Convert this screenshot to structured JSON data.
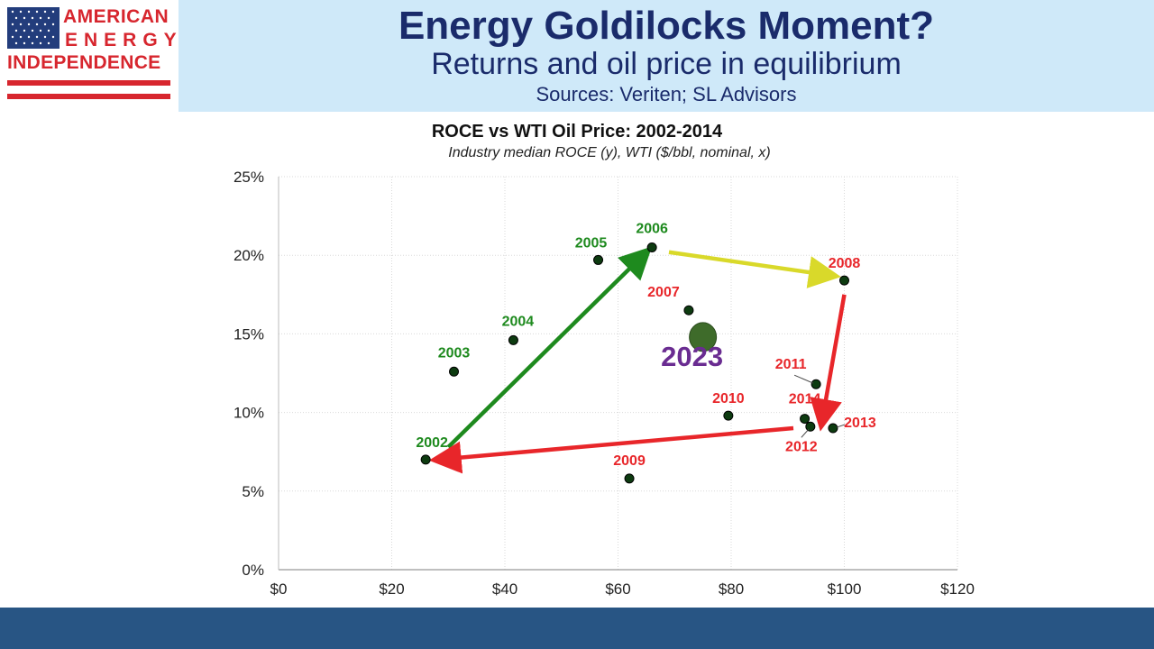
{
  "header": {
    "logo": {
      "line1": "AMERICAN",
      "line2": "ENERGY",
      "line3": "INDEPENDENCE"
    },
    "title": "Energy Goldilocks Moment?",
    "subtitle": "Returns and oil price in equilibrium",
    "sources": "Sources: Veriten; SL Advisors"
  },
  "colors": {
    "header_bg": "#cfe9f9",
    "title_text": "#1a2b6b",
    "footer_bg": "#285584",
    "green": "#1e8a1e",
    "red": "#e8262a",
    "yellow": "#d9d92a",
    "purple": "#6a2c91"
  },
  "chart_data": {
    "type": "scatter",
    "title": "ROCE vs WTI Oil Price: 2002-2014",
    "subtitle": "Industry median ROCE (y), WTI ($/bbl, nominal, x)",
    "xlim": [
      0,
      120
    ],
    "ylim": [
      0,
      25
    ],
    "xticks": [
      "$0",
      "$20",
      "$40",
      "$60",
      "$80",
      "$100",
      "$120"
    ],
    "yticks": [
      "0%",
      "5%",
      "10%",
      "15%",
      "20%",
      "25%"
    ],
    "grid": true,
    "points": [
      {
        "label": "2002",
        "x": 26,
        "y": 7.0,
        "color": "#1e8a1e"
      },
      {
        "label": "2003",
        "x": 31,
        "y": 12.6,
        "color": "#1e8a1e"
      },
      {
        "label": "2004",
        "x": 41.5,
        "y": 14.6,
        "color": "#1e8a1e"
      },
      {
        "label": "2005",
        "x": 56.5,
        "y": 19.7,
        "color": "#1e8a1e"
      },
      {
        "label": "2006",
        "x": 66,
        "y": 20.5,
        "color": "#1e8a1e"
      },
      {
        "label": "2007",
        "x": 72.5,
        "y": 16.5,
        "color": "#e8262a"
      },
      {
        "label": "2008",
        "x": 100,
        "y": 18.4,
        "color": "#e8262a"
      },
      {
        "label": "2009",
        "x": 62,
        "y": 5.8,
        "color": "#e8262a"
      },
      {
        "label": "2010",
        "x": 79.5,
        "y": 9.8,
        "color": "#e8262a"
      },
      {
        "label": "2011",
        "x": 95,
        "y": 11.8,
        "color": "#e8262a"
      },
      {
        "label": "2012",
        "x": 94,
        "y": 9.1,
        "color": "#e8262a"
      },
      {
        "label": "2013",
        "x": 98,
        "y": 9.0,
        "color": "#e8262a"
      },
      {
        "label": "2014",
        "x": 93,
        "y": 9.6,
        "color": "#e8262a"
      }
    ],
    "highlight": {
      "label": "2023",
      "x": 75,
      "y": 14.8,
      "color": "#3e6b2a",
      "label_color": "#6a2c91"
    },
    "arrows": [
      {
        "from": [
          30,
          7.8
        ],
        "to": [
          65,
          20.2
        ],
        "color": "#1e8a1e"
      },
      {
        "from": [
          69,
          20.2
        ],
        "to": [
          98,
          18.7
        ],
        "color": "#d9d92a"
      },
      {
        "from": [
          100,
          17.5
        ],
        "to": [
          96,
          9.3
        ],
        "color": "#e8262a"
      },
      {
        "from": [
          91,
          9.0
        ],
        "to": [
          28,
          7.0
        ],
        "color": "#e8262a"
      }
    ]
  }
}
